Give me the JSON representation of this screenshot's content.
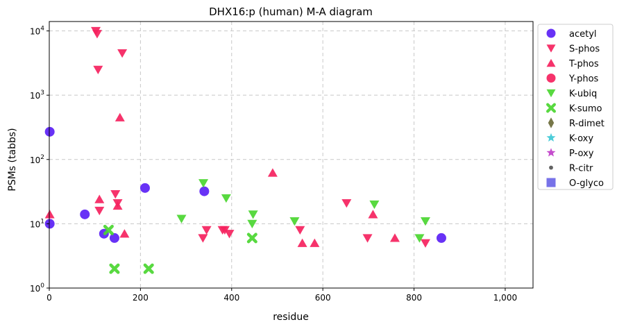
{
  "chart_data": {
    "type": "scatter",
    "title": "DHX16:p (human) M-A diagram",
    "xlabel": "residue",
    "ylabel": "PSMs (tabbs)",
    "xlim": [
      0,
      1061
    ],
    "ylim": [
      1,
      14000
    ],
    "yscale": "log",
    "grid": true,
    "legend_position": "outside-right",
    "x_ticks": [
      0,
      200,
      400,
      600,
      800,
      1000
    ],
    "x_tick_labels": [
      "0",
      "200",
      "400",
      "600",
      "800",
      "1,000"
    ],
    "y_ticks": [
      1,
      10,
      100,
      1000,
      10000
    ],
    "y_tick_labels": [
      {
        "base": "10",
        "exp": "0"
      },
      {
        "base": "10",
        "exp": "1"
      },
      {
        "base": "10",
        "exp": "2"
      },
      {
        "base": "10",
        "exp": "3"
      },
      {
        "base": "10",
        "exp": "4"
      }
    ],
    "series": [
      {
        "name": "acetyl",
        "marker": "circle",
        "color": "#5b21f5",
        "points": [
          [
            1,
            270
          ],
          [
            1,
            10
          ],
          [
            78,
            14
          ],
          [
            120,
            7
          ],
          [
            143,
            6
          ],
          [
            210,
            36
          ],
          [
            340,
            32
          ],
          [
            860,
            6
          ]
        ]
      },
      {
        "name": "S-phos",
        "marker": "triangle-down",
        "color": "#f5225e",
        "points": [
          [
            102,
            10000
          ],
          [
            105,
            9000
          ],
          [
            107,
            2500
          ],
          [
            110,
            16
          ],
          [
            145,
            29
          ],
          [
            150,
            21
          ],
          [
            160,
            4500
          ],
          [
            337,
            6
          ],
          [
            345,
            8
          ],
          [
            380,
            8
          ],
          [
            385,
            8
          ],
          [
            395,
            7
          ],
          [
            550,
            8
          ],
          [
            652,
            21
          ],
          [
            698,
            6
          ],
          [
            825,
            5
          ]
        ]
      },
      {
        "name": "T-phos",
        "marker": "triangle-up",
        "color": "#f5225e",
        "points": [
          [
            1,
            14
          ],
          [
            110,
            24
          ],
          [
            150,
            19
          ],
          [
            155,
            450
          ],
          [
            165,
            7
          ],
          [
            490,
            62
          ],
          [
            555,
            5
          ],
          [
            582,
            5
          ],
          [
            710,
            14
          ],
          [
            758,
            6
          ]
        ]
      },
      {
        "name": "Y-phos",
        "marker": "circle",
        "color": "#f5225e",
        "points": []
      },
      {
        "name": "K-ubiq",
        "marker": "triangle-down",
        "color": "#4ad630",
        "points": [
          [
            290,
            12
          ],
          [
            338,
            43
          ],
          [
            388,
            25
          ],
          [
            445,
            10
          ],
          [
            447,
            14
          ],
          [
            538,
            11
          ],
          [
            713,
            20
          ],
          [
            812,
            6
          ],
          [
            825,
            11
          ]
        ]
      },
      {
        "name": "K-sumo",
        "marker": "x",
        "color": "#4ad630",
        "points": [
          [
            130,
            8
          ],
          [
            143,
            2
          ],
          [
            218,
            2
          ],
          [
            445,
            6
          ]
        ]
      },
      {
        "name": "R-dimet",
        "marker": "diamond",
        "color": "#6b6b3a",
        "points": []
      },
      {
        "name": "K-oxy",
        "marker": "star",
        "color": "#3ec9d6",
        "points": []
      },
      {
        "name": "P-oxy",
        "marker": "star",
        "color": "#c03ec9",
        "points": []
      },
      {
        "name": "R-citr",
        "marker": "dot",
        "color": "#555555",
        "points": []
      },
      {
        "name": "O-glyco",
        "marker": "square",
        "color": "#6b66e6",
        "points": []
      }
    ]
  }
}
